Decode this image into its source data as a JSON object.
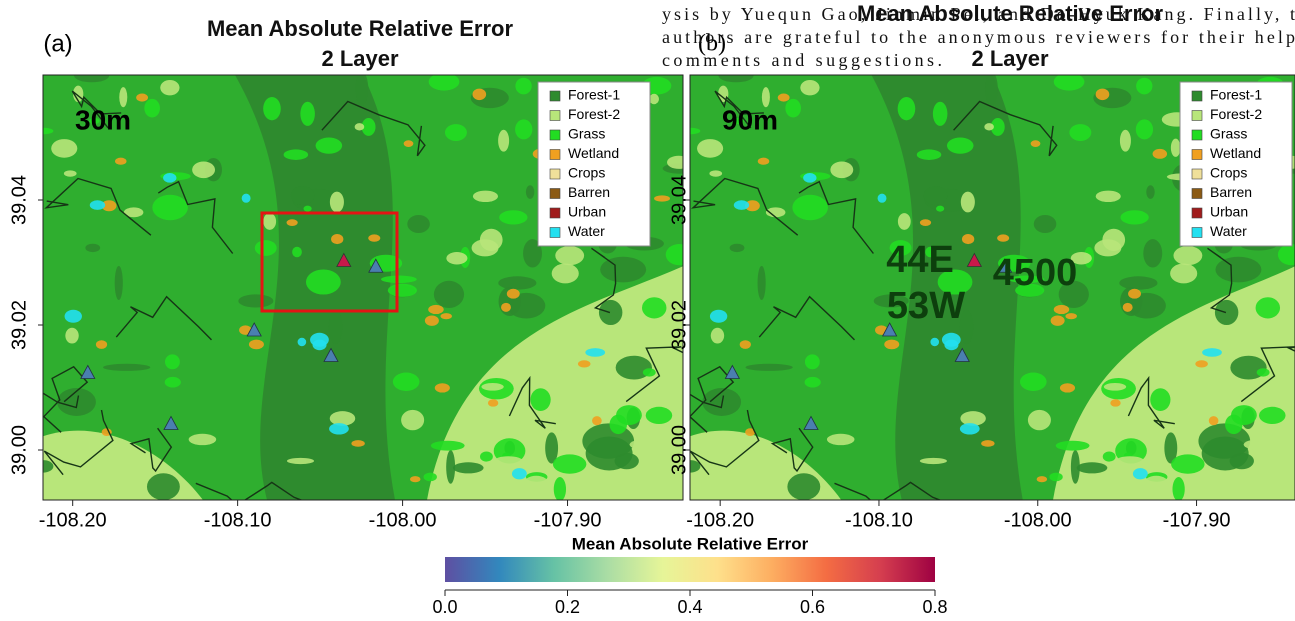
{
  "panels": [
    {
      "label": "(a)",
      "title": "Mean Absolute Relative Error",
      "subtitle": "2 Layer",
      "resolution": "30m",
      "xlim": [
        -108.218,
        -107.83
      ],
      "ylim": [
        38.992,
        39.06
      ],
      "xticks": [
        {
          "value": -108.2,
          "label": "-108.20"
        },
        {
          "value": -108.1,
          "label": "-108.10"
        },
        {
          "value": -108,
          "label": "-108.00"
        },
        {
          "value": -107.9,
          "label": "-107.90"
        }
      ],
      "yticks": [
        {
          "value": 39,
          "label": "39.00"
        },
        39.02,
        39.04
      ],
      "annotations": []
    },
    {
      "label": "(b)",
      "title": "Mean Absolute Relative Error",
      "subtitle": "2 Layer",
      "resolution": "90m",
      "xlim": [
        -108.219,
        -107.838
      ],
      "ylim": [
        38.992,
        39.06
      ],
      "xticks": [
        {
          "value": -108.2,
          "label": "-108.20"
        },
        {
          "value": -108.1,
          "label": "-108.10"
        },
        {
          "value": -108,
          "label": "-108.00"
        },
        {
          "value": -107.9,
          "label": "-107.90"
        }
      ],
      "yticks": [
        {
          "value": 39,
          "label": "39.00"
        },
        39.02,
        39.04
      ],
      "annotations": [
        "44E",
        "53W",
        "4500"
      ]
    }
  ],
  "legend": [
    {
      "name": "Forest-1",
      "color": "#2e8b2e"
    },
    {
      "name": "Forest-2",
      "color": "#b8e67a"
    },
    {
      "name": "Grass",
      "color": "#22dd22"
    },
    {
      "name": "Wetland",
      "color": "#f0a020"
    },
    {
      "name": "Crops",
      "color": "#f0e09a"
    },
    {
      "name": "Barren",
      "color": "#8b5a14"
    },
    {
      "name": "Urban",
      "color": "#a01c1c"
    },
    {
      "name": "Water",
      "color": "#22e0f0"
    }
  ],
  "colorbar": {
    "title": "Mean Absolute Relative Error",
    "lim": [
      0,
      0.8
    ],
    "ticks": [
      {
        "value": 0,
        "label": "0.0"
      },
      0.2,
      0.4,
      0.6,
      0.8
    ],
    "colormap": [
      "#5e4fa2",
      "#3288bd",
      "#66c2a5",
      "#abdda4",
      "#e6f598",
      "#fee08b",
      "#fdae61",
      "#f46d43",
      "#d53e4f",
      "#9e0142"
    ]
  },
  "overlay_text": [
    "ysis by Yuequn Gao, Jinmin Pei, and Do-Hyuk Kang. Finally, t",
    "authors are grateful to the anonymous reviewers for their help",
    "comments and suggestions."
  ]
}
